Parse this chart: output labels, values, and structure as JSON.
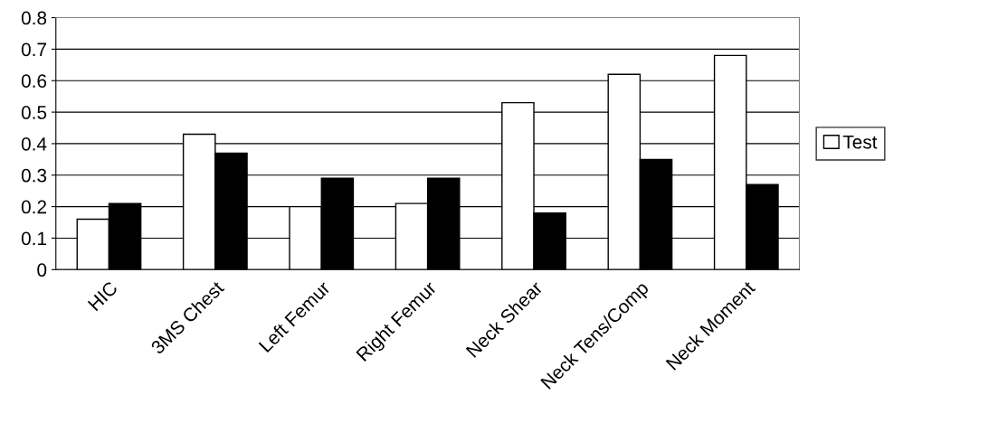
{
  "chart_data": {
    "type": "bar",
    "categories": [
      "HIC",
      "3MS Chest",
      "Left Femur",
      "Right Femur",
      "Neck Shear",
      "Neck Tens/Comp",
      "Neck Moment"
    ],
    "series": [
      {
        "name": "Test",
        "color": "#ffffff",
        "values": [
          0.16,
          0.43,
          0.2,
          0.21,
          0.53,
          0.62,
          0.68
        ]
      },
      {
        "color": "#000000",
        "values": [
          0.21,
          0.37,
          0.29,
          0.29,
          0.18,
          0.35,
          0.27
        ]
      }
    ],
    "ylim": [
      0,
      0.8
    ],
    "yticks": [
      0,
      0.1,
      0.2,
      0.3,
      0.4,
      0.5,
      0.6,
      0.7,
      0.8
    ],
    "grid": "y",
    "legend": "right"
  }
}
